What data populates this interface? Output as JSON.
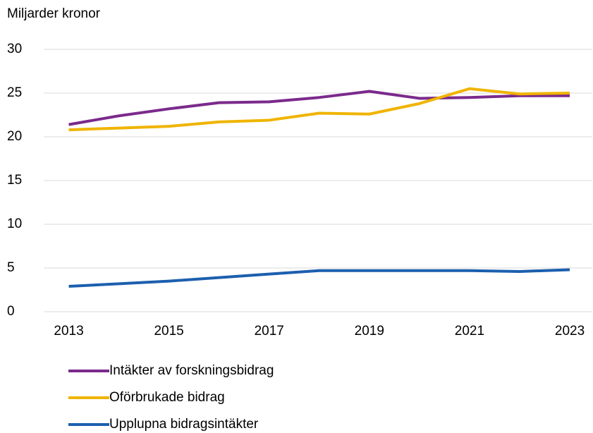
{
  "chart_data": {
    "type": "line",
    "y_label": "Miljarder kronor",
    "x": [
      2013,
      2014,
      2015,
      2016,
      2017,
      2018,
      2019,
      2020,
      2021,
      2022,
      2023
    ],
    "series": [
      {
        "name": "Intäkter av forskningsbidrag",
        "color": "#7b2a8c",
        "values": [
          21.4,
          22.4,
          23.2,
          23.9,
          24.0,
          24.5,
          25.2,
          24.4,
          24.5,
          24.7,
          24.7
        ]
      },
      {
        "name": "Oförbrukade bidrag",
        "color": "#f0b400",
        "values": [
          20.8,
          21.0,
          21.2,
          21.7,
          21.9,
          22.7,
          22.6,
          23.8,
          25.5,
          24.9,
          25.0
        ]
      },
      {
        "name": "Upplupna bidragsintäkter",
        "color": "#1c5fae",
        "values": [
          2.9,
          3.2,
          3.5,
          3.9,
          4.3,
          4.7,
          4.7,
          4.7,
          4.7,
          4.6,
          4.8
        ]
      }
    ],
    "xlim": [
      2012.5,
      2023.45
    ],
    "xticks": [
      2013,
      2015,
      2017,
      2019,
      2021,
      2023
    ],
    "ylim": [
      0,
      30
    ],
    "yticks": [
      0,
      5,
      10,
      15,
      20,
      25,
      30
    ],
    "grid": true,
    "legend": "bottom-left"
  }
}
